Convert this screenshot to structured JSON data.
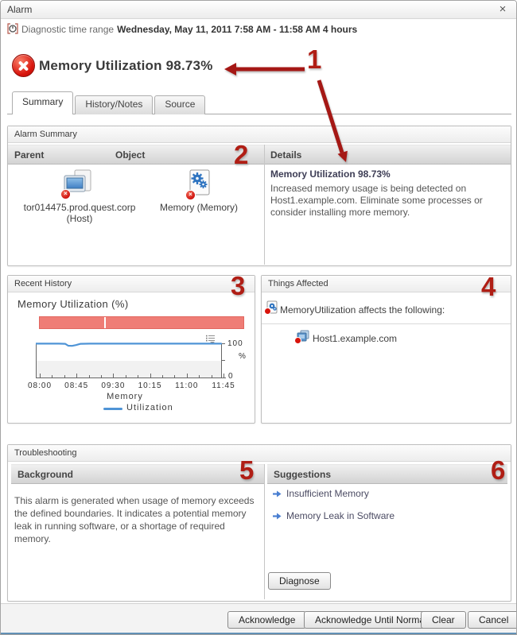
{
  "window": {
    "title": "Alarm",
    "close_glyph": "×"
  },
  "time_range": {
    "label": "Diagnostic time range",
    "value": "Wednesday, May 11, 2011  7:58 AM - 11:58 AM  4 hours"
  },
  "alarm": {
    "title": "Memory Utilization 98.73%",
    "severity": "fatal"
  },
  "tabs": [
    {
      "label": "Summary",
      "active": true
    },
    {
      "label": "History/Notes",
      "active": false
    },
    {
      "label": "Source",
      "active": false
    }
  ],
  "alarm_summary": {
    "section_title": "Alarm Summary",
    "columns": {
      "parent": "Parent",
      "object": "Object",
      "details": "Details"
    },
    "parent": {
      "name": "tor014475.prod.quest.corp",
      "type": "(Host)"
    },
    "object": {
      "name": "Memory (Memory)"
    },
    "details": {
      "title": "Memory Utilization 98.73%",
      "body": "Increased memory usage is being detected on Host1.example.com. Eliminate some processes or consider installing more memory."
    }
  },
  "recent_history": {
    "section_title": "Recent History"
  },
  "chart_data": {
    "type": "line",
    "title": "Memory Utilization (%)",
    "x_ticks": [
      "08:00",
      "08:45",
      "09:30",
      "10:15",
      "11:00",
      "11:45"
    ],
    "start": "07:58",
    "end": "11:58",
    "duration_min": 240,
    "ylim": [
      0,
      100
    ],
    "ylabel": "%",
    "grid": false,
    "legend_position": "bottom",
    "legend_group": "Memory",
    "series": [
      {
        "name": "Utilization",
        "color": "#4f94d6",
        "points": [
          [
            0,
            99
          ],
          [
            10,
            99
          ],
          [
            20,
            99
          ],
          [
            30,
            99
          ],
          [
            38,
            98.5
          ],
          [
            42,
            93
          ],
          [
            47,
            92.5
          ],
          [
            52,
            95
          ],
          [
            58,
            98.5
          ],
          [
            70,
            99
          ],
          [
            90,
            99
          ],
          [
            120,
            99
          ],
          [
            150,
            99
          ],
          [
            180,
            99
          ],
          [
            210,
            99
          ],
          [
            240,
            99
          ]
        ]
      }
    ],
    "severity_strip": {
      "label": "alarm severity over time range",
      "color": "#ef7d76",
      "gap_ratio": 0.315
    }
  },
  "things_affected": {
    "section_title": "Things Affected",
    "heading": "MemoryUtilization affects the following:",
    "items": [
      "Host1.example.com"
    ]
  },
  "troubleshooting": {
    "section_title": "Troubleshooting",
    "background_title": "Background",
    "background_text": "This alarm is generated when usage of memory exceeds the defined boundaries. It indicates a potential memory leak in running software, or a shortage of required memory.",
    "suggestions_title": "Suggestions",
    "suggestions": [
      "Insufficient Memory",
      "Memory Leak in Software"
    ],
    "diagnose_label": "Diagnose"
  },
  "footer": {
    "buttons": [
      "Acknowledge",
      "Acknowledge Until Normal",
      "Clear",
      "Cancel"
    ]
  },
  "annotations": {
    "labels": [
      "1",
      "2",
      "3",
      "4",
      "5",
      "6"
    ]
  },
  "colors": {
    "annotation_red": "#b01e15",
    "alarm_icon_red": "#d8140c",
    "severity_bar": "#ef7d76",
    "chart_line_blue": "#4f94d6",
    "suggestion_arrow_blue": "#4a7fd1",
    "footer_edge_blue": "#3f6f94"
  }
}
